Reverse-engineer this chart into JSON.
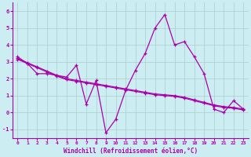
{
  "xlabel": "Windchill (Refroidissement éolien,°C)",
  "ylabel": "",
  "xlim": [
    -0.5,
    23.5
  ],
  "ylim": [
    -1.5,
    6.5
  ],
  "yticks": [
    -1,
    0,
    1,
    2,
    3,
    4,
    5,
    6
  ],
  "xticks": [
    0,
    1,
    2,
    3,
    4,
    5,
    6,
    7,
    8,
    9,
    10,
    11,
    12,
    13,
    14,
    15,
    16,
    17,
    18,
    19,
    20,
    21,
    22,
    23
  ],
  "bg_color": "#cceef2",
  "line_color": "#aa00aa",
  "grid_color": "#aacccc",
  "border_color": "#aa00aa",
  "line_main": [
    3.3,
    2.9,
    2.3,
    2.3,
    2.2,
    2.1,
    2.8,
    0.5,
    1.9,
    -1.2,
    -0.4,
    1.3,
    2.5,
    3.5,
    5.0,
    5.8,
    4.0,
    4.2,
    3.3,
    2.3,
    0.2,
    0.0,
    0.7,
    0.2
  ],
  "line_smooth1": [
    3.2,
    2.95,
    2.7,
    2.45,
    2.2,
    2.0,
    1.9,
    1.8,
    1.7,
    1.6,
    1.5,
    1.4,
    1.3,
    1.2,
    1.1,
    1.05,
    1.0,
    0.9,
    0.75,
    0.6,
    0.45,
    0.35,
    0.3,
    0.2
  ],
  "line_smooth2": [
    3.15,
    2.9,
    2.65,
    2.4,
    2.15,
    1.95,
    1.85,
    1.75,
    1.65,
    1.55,
    1.45,
    1.35,
    1.25,
    1.15,
    1.05,
    1.0,
    0.95,
    0.85,
    0.7,
    0.55,
    0.4,
    0.3,
    0.25,
    0.15
  ]
}
